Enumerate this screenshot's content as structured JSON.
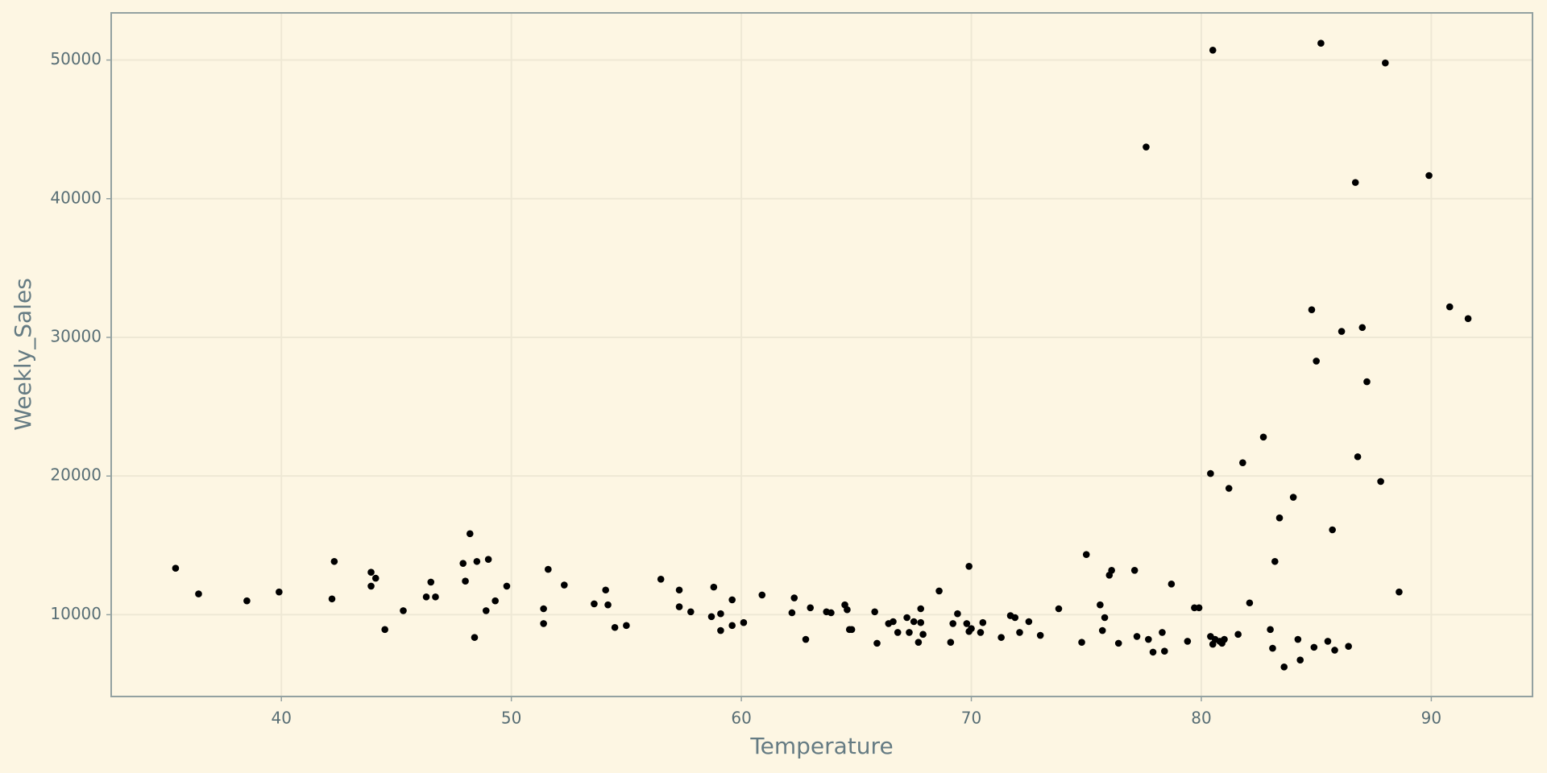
{
  "chart_data": {
    "type": "scatter",
    "x_label": "Temperature",
    "y_label": "Weekly_Sales",
    "color": "#000000",
    "grid": true,
    "xlim": [
      32.6,
      94.4
    ],
    "ylim": [
      4100,
      53400
    ],
    "xticks": [
      40,
      50,
      60,
      70,
      80,
      90
    ],
    "yticks": [
      10000,
      20000,
      30000,
      40000,
      50000
    ],
    "x": [
      35.4,
      36.4,
      38.5,
      39.9,
      42.3,
      42.2,
      43.9,
      43.9,
      44.1,
      44.5,
      45.3,
      46.3,
      46.5,
      46.7,
      47.9,
      48.0,
      48.2,
      48.5,
      48.4,
      49.0,
      48.9,
      49.3,
      49.8,
      51.4,
      51.6,
      51.4,
      52.3,
      53.6,
      54.1,
      54.2,
      54.5,
      55.0,
      56.5,
      57.3,
      57.3,
      57.8,
      58.8,
      58.7,
      59.1,
      59.1,
      59.6,
      59.6,
      60.1,
      60.9,
      62.3,
      62.2,
      62.8,
      63.0,
      63.7,
      63.9,
      64.5,
      64.6,
      64.7,
      64.8,
      65.8,
      65.9,
      66.4,
      66.6,
      66.8,
      67.2,
      67.3,
      67.5,
      67.7,
      67.8,
      67.9,
      67.8,
      68.6,
      69.2,
      69.1,
      69.4,
      69.8,
      69.9,
      70.0,
      69.9,
      70.4,
      70.5,
      71.3,
      71.7,
      71.9,
      72.1,
      72.5,
      73.0,
      73.8,
      74.8,
      75.0,
      75.6,
      75.8,
      75.7,
      76.0,
      76.1,
      76.4,
      77.1,
      77.2,
      77.7,
      77.6,
      77.9,
      78.3,
      78.4,
      78.7,
      79.4,
      79.7,
      79.9,
      80.5,
      80.4,
      80.4,
      80.5,
      80.6,
      80.8,
      80.9,
      81.0,
      81.2,
      81.6,
      81.8,
      82.1,
      82.7,
      83.0,
      83.1,
      83.2,
      83.4,
      83.6,
      84.0,
      84.2,
      84.3,
      84.8,
      84.9,
      85.0,
      85.2,
      85.5,
      85.7,
      85.8,
      86.1,
      86.4,
      86.7,
      86.8,
      87.0,
      87.2,
      87.8,
      88.0,
      88.6,
      89.9,
      90.8,
      91.6
    ],
    "values": [
      13350,
      11500,
      11000,
      11640,
      13840,
      11140,
      12060,
      13060,
      12630,
      8930,
      10290,
      11280,
      12350,
      11280,
      13700,
      12420,
      15840,
      13840,
      8360,
      13990,
      10290,
      11000,
      12060,
      10430,
      13270,
      9360,
      12140,
      10780,
      11780,
      10710,
      9080,
      9220,
      12560,
      11780,
      10570,
      10210,
      11990,
      9860,
      10070,
      8860,
      11070,
      9220,
      9430,
      11420,
      11210,
      10140,
      8220,
      10500,
      10210,
      10140,
      10710,
      10360,
      8930,
      8930,
      10210,
      7940,
      9360,
      9500,
      8720,
      9790,
      8720,
      9500,
      8010,
      9430,
      8580,
      10430,
      11710,
      9360,
      8010,
      10070,
      9360,
      13490,
      9000,
      8790,
      8720,
      9430,
      8360,
      9930,
      9790,
      8720,
      9500,
      8510,
      10430,
      8010,
      14340,
      10710,
      9790,
      8860,
      12850,
      13200,
      7940,
      13200,
      8430,
      8220,
      43730,
      7300,
      8720,
      7370,
      12210,
      8080,
      10500,
      10500,
      50710,
      20180,
      8430,
      7870,
      8220,
      8080,
      7940,
      8220,
      19110,
      8580,
      20960,
      10850,
      22810,
      8930,
      7580,
      13840,
      16980,
      6230,
      18470,
      8220,
      6730,
      31990,
      7650,
      28290,
      51210,
      8080,
      16120,
      7440,
      30430,
      7720,
      41170,
      21390,
      30710,
      26800,
      19610,
      49790,
      11640,
      41670,
      32200,
      31350
    ]
  }
}
